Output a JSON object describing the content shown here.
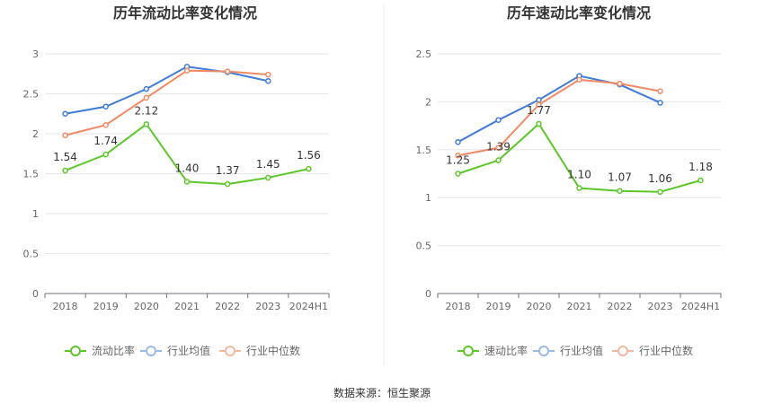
{
  "source": "数据来源：恒生聚源",
  "chart_data": [
    {
      "type": "line",
      "title": "历年流动比率变化情况",
      "categories": [
        "2018",
        "2019",
        "2020",
        "2021",
        "2022",
        "2023",
        "2024H1"
      ],
      "ylim": [
        0,
        3
      ],
      "yticks": [
        "0",
        "0.5",
        "1",
        "1.5",
        "2",
        "2.5",
        "3"
      ],
      "grid": true,
      "legend_position": "bottom",
      "series": [
        {
          "name": "流动比率",
          "color": "#5cc62a",
          "values": [
            1.54,
            1.74,
            2.12,
            1.4,
            1.37,
            1.45,
            1.56
          ],
          "labels": [
            "1.54",
            "1.74",
            "2.12",
            "1.40",
            "1.37",
            "1.45",
            "1.56"
          ]
        },
        {
          "name": "行业均值",
          "color": "#3f7bd6",
          "values": [
            2.25,
            2.34,
            2.56,
            2.84,
            2.77,
            2.66,
            null
          ]
        },
        {
          "name": "行业中位数",
          "color": "#ef8a65",
          "values": [
            1.98,
            2.11,
            2.45,
            2.79,
            2.78,
            2.74,
            null
          ]
        }
      ]
    },
    {
      "type": "line",
      "title": "历年速动比率变化情况",
      "categories": [
        "2018",
        "2019",
        "2020",
        "2021",
        "2022",
        "2023",
        "2024H1"
      ],
      "ylim": [
        0,
        2.5
      ],
      "yticks": [
        "0",
        "0.5",
        "1",
        "1.5",
        "2",
        "2.5"
      ],
      "grid": true,
      "legend_position": "bottom",
      "series": [
        {
          "name": "速动比率",
          "color": "#5cc62a",
          "values": [
            1.25,
            1.39,
            1.77,
            1.1,
            1.07,
            1.06,
            1.18
          ],
          "labels": [
            "1.25",
            "1.39",
            "1.77",
            "1.10",
            "1.07",
            "1.06",
            "1.18"
          ]
        },
        {
          "name": "行业均值",
          "color": "#3f7bd6",
          "values": [
            1.58,
            1.81,
            2.02,
            2.27,
            2.18,
            1.99,
            null
          ]
        },
        {
          "name": "行业中位数",
          "color": "#ef8a65",
          "values": [
            1.44,
            1.52,
            1.97,
            2.23,
            2.19,
            2.11,
            null
          ]
        }
      ]
    }
  ]
}
